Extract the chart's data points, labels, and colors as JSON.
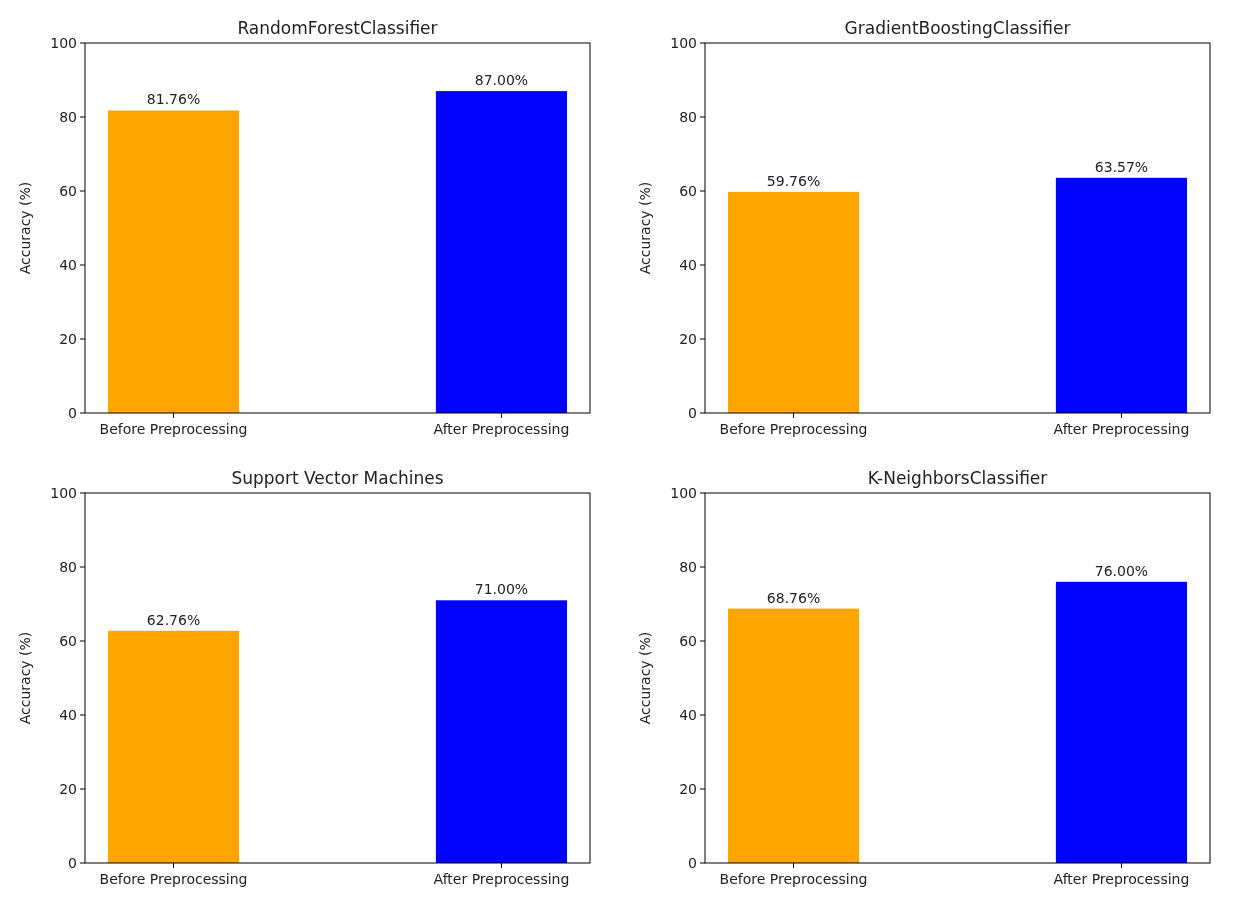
{
  "chart_data": [
    {
      "type": "bar",
      "title": "RandomForestClassifier",
      "ylabel": "Accuracy (%)",
      "categories": [
        "Before Preprocessing",
        "After Preprocessing"
      ],
      "values": [
        81.76,
        87.0
      ],
      "colors": [
        "#ffa500",
        "#0000ff"
      ],
      "value_labels": [
        "81.76%",
        "87.00%"
      ],
      "ylim": [
        0,
        100
      ],
      "yticks": [
        0,
        20,
        40,
        60,
        80,
        100
      ],
      "grid": false
    },
    {
      "type": "bar",
      "title": "GradientBoostingClassifier",
      "ylabel": "Accuracy (%)",
      "categories": [
        "Before Preprocessing",
        "After Preprocessing"
      ],
      "values": [
        59.76,
        63.57
      ],
      "colors": [
        "#ffa500",
        "#0000ff"
      ],
      "value_labels": [
        "59.76%",
        "63.57%"
      ],
      "ylim": [
        0,
        100
      ],
      "yticks": [
        0,
        20,
        40,
        60,
        80,
        100
      ],
      "grid": false
    },
    {
      "type": "bar",
      "title": "Support Vector Machines",
      "ylabel": "Accuracy (%)",
      "categories": [
        "Before Preprocessing",
        "After Preprocessing"
      ],
      "values": [
        62.76,
        71.0
      ],
      "colors": [
        "#ffa500",
        "#0000ff"
      ],
      "value_labels": [
        "62.76%",
        "71.00%"
      ],
      "ylim": [
        0,
        100
      ],
      "yticks": [
        0,
        20,
        40,
        60,
        80,
        100
      ],
      "grid": false
    },
    {
      "type": "bar",
      "title": "K-NeighborsClassifier",
      "ylabel": "Accuracy (%)",
      "categories": [
        "Before Preprocessing",
        "After Preprocessing"
      ],
      "values": [
        68.76,
        76.0
      ],
      "colors": [
        "#ffa500",
        "#0000ff"
      ],
      "value_labels": [
        "68.76%",
        "76.00%"
      ],
      "ylim": [
        0,
        100
      ],
      "yticks": [
        0,
        20,
        40,
        60,
        80,
        100
      ],
      "grid": false
    }
  ]
}
